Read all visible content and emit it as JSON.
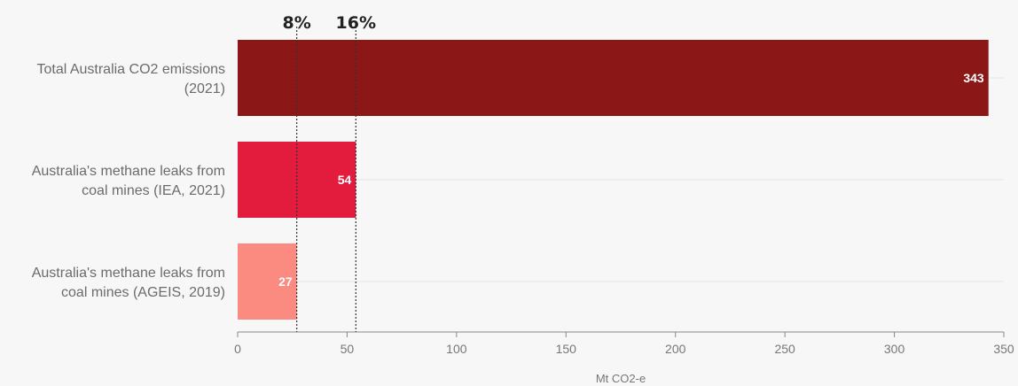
{
  "chart_data": {
    "type": "bar",
    "orientation": "horizontal",
    "categories": [
      [
        "Total Australia CO2 emissions",
        "(2021)"
      ],
      [
        "Australia's methane leaks from",
        "coal mines (IEA, 2021)"
      ],
      [
        "Australia's methane leaks from",
        "coal mines (AGEIS, 2019)"
      ]
    ],
    "values": [
      343,
      54,
      27
    ],
    "value_labels": [
      "343",
      "54",
      "27"
    ],
    "colors": [
      "#8b1717",
      "#e31b3d",
      "#fb8a80"
    ],
    "xlabel": "Mt CO2-e",
    "xlim": [
      0,
      350
    ],
    "xticks": [
      0,
      50,
      100,
      150,
      200,
      250,
      300,
      350
    ],
    "reference_lines": [
      {
        "x": 27,
        "label": "8%"
      },
      {
        "x": 54,
        "label": "16%"
      }
    ]
  }
}
